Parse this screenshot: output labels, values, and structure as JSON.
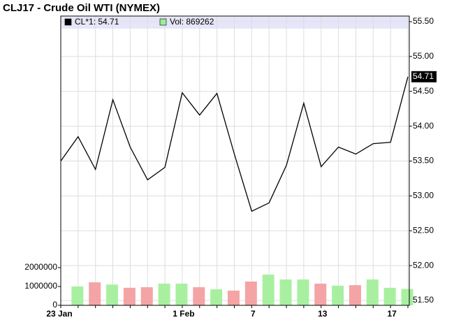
{
  "chart_data": {
    "type": "line",
    "title": "CLJ17 - Crude Oil WTI (NYMEX)",
    "categories": [
      "23 Jan",
      null,
      null,
      null,
      null,
      null,
      null,
      "1 Feb",
      null,
      null,
      null,
      "7",
      null,
      null,
      null,
      "13",
      null,
      null,
      null,
      "17",
      null
    ],
    "series": [
      {
        "name": "CL*1",
        "color": "#000000",
        "values": [
          53.5,
          53.85,
          53.38,
          54.38,
          53.7,
          53.23,
          53.41,
          54.48,
          54.16,
          54.47,
          53.6,
          52.78,
          52.9,
          53.44,
          54.33,
          53.42,
          53.7,
          53.6,
          53.75,
          53.77,
          54.71
        ]
      }
    ],
    "ylim": [
      51.43,
      55.58
    ],
    "yticks": [
      {
        "value": 51.5,
        "label": "51.50"
      },
      {
        "value": 52,
        "label": "52.00"
      },
      {
        "value": 52.5,
        "label": "52.50"
      },
      {
        "value": 53,
        "label": "53.00"
      },
      {
        "value": 53.5,
        "label": "53.50"
      },
      {
        "value": 54,
        "label": "54.00"
      },
      {
        "value": 54.5,
        "label": "54.50"
      },
      {
        "value": 55,
        "label": "55.00"
      },
      {
        "value": 55.5,
        "label": "55.50"
      }
    ],
    "grid": true,
    "volume": {
      "type": "bar",
      "name": "Vol",
      "color": "#99ee99",
      "up_color": "#a8f0a0",
      "down_color": "#f4a4a4",
      "values": [
        null,
        1000000,
        1220000,
        1100000,
        930000,
        960000,
        1150000,
        1150000,
        960000,
        850000,
        780000,
        1260000,
        1630000,
        1370000,
        1370000,
        1150000,
        1040000,
        1070000,
        1370000,
        930000,
        869262
      ],
      "ylim": [
        0,
        2000000
      ],
      "yticks": [
        0,
        1000000,
        2000000
      ]
    },
    "legend_background": "#e6e6fa"
  }
}
